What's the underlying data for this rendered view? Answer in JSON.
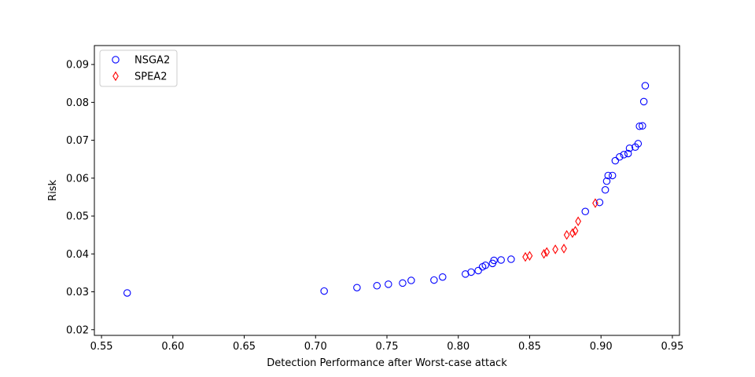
{
  "chart_data": {
    "type": "scatter",
    "xlabel": "Detection Performance after Worst-case attack",
    "ylabel": "Risk",
    "xlim": [
      0.545,
      0.955
    ],
    "ylim": [
      0.0185,
      0.095
    ],
    "xticks": [
      0.55,
      0.6,
      0.65,
      0.7,
      0.75,
      0.8,
      0.85,
      0.9,
      0.95
    ],
    "xtick_labels": [
      "0.55",
      "0.60",
      "0.65",
      "0.70",
      "0.75",
      "0.80",
      "0.85",
      "0.90",
      "0.95"
    ],
    "yticks": [
      0.02,
      0.03,
      0.04,
      0.05,
      0.06,
      0.07,
      0.08,
      0.09
    ],
    "ytick_labels": [
      "0.02",
      "0.03",
      "0.04",
      "0.05",
      "0.06",
      "0.07",
      "0.08",
      "0.09"
    ],
    "grid": false,
    "legend_position": "top-left",
    "series": [
      {
        "name": "NSGA2",
        "marker": "circle-open",
        "color": "#0000ff",
        "points": [
          [
            0.568,
            0.0297
          ],
          [
            0.706,
            0.0302
          ],
          [
            0.729,
            0.0311
          ],
          [
            0.743,
            0.0316
          ],
          [
            0.751,
            0.032
          ],
          [
            0.761,
            0.0323
          ],
          [
            0.767,
            0.033
          ],
          [
            0.783,
            0.0331
          ],
          [
            0.789,
            0.0339
          ],
          [
            0.805,
            0.0347
          ],
          [
            0.809,
            0.0352
          ],
          [
            0.814,
            0.0356
          ],
          [
            0.817,
            0.0366
          ],
          [
            0.819,
            0.037
          ],
          [
            0.824,
            0.0375
          ],
          [
            0.825,
            0.0383
          ],
          [
            0.83,
            0.0384
          ],
          [
            0.837,
            0.0386
          ],
          [
            0.889,
            0.0512
          ],
          [
            0.899,
            0.0536
          ],
          [
            0.903,
            0.0569
          ],
          [
            0.904,
            0.0592
          ],
          [
            0.905,
            0.0607
          ],
          [
            0.908,
            0.0607
          ],
          [
            0.91,
            0.0646
          ],
          [
            0.913,
            0.0656
          ],
          [
            0.916,
            0.0662
          ],
          [
            0.919,
            0.0665
          ],
          [
            0.92,
            0.0679
          ],
          [
            0.924,
            0.0682
          ],
          [
            0.926,
            0.0691
          ],
          [
            0.927,
            0.0737
          ],
          [
            0.929,
            0.0738
          ],
          [
            0.93,
            0.0802
          ],
          [
            0.931,
            0.0844
          ]
        ]
      },
      {
        "name": "SPEA2",
        "marker": "diamond-open",
        "color": "#ff0000",
        "points": [
          [
            0.847,
            0.0392
          ],
          [
            0.85,
            0.0395
          ],
          [
            0.86,
            0.04
          ],
          [
            0.862,
            0.0405
          ],
          [
            0.868,
            0.0412
          ],
          [
            0.874,
            0.0414
          ],
          [
            0.876,
            0.045
          ],
          [
            0.88,
            0.0455
          ],
          [
            0.882,
            0.0461
          ],
          [
            0.884,
            0.0486
          ],
          [
            0.896,
            0.0534
          ]
        ]
      }
    ]
  }
}
